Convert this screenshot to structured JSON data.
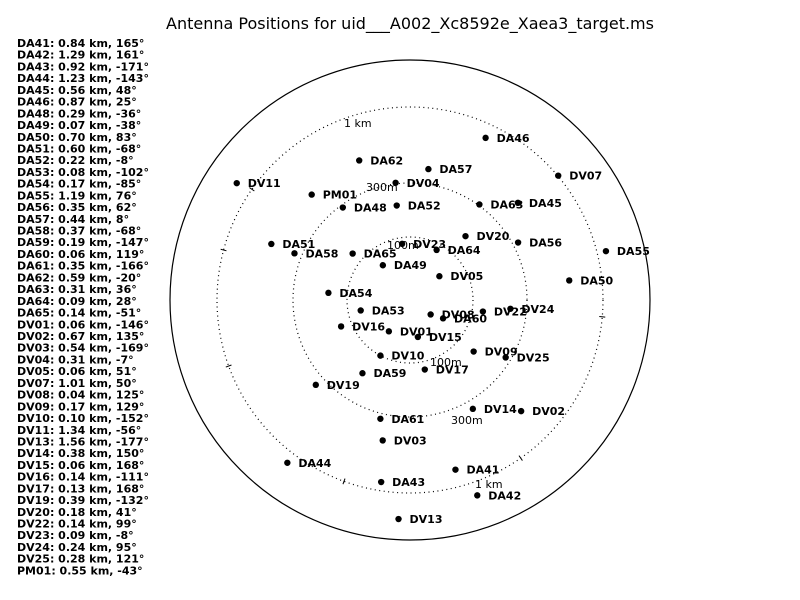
{
  "title": "Antenna Positions for uid___A002_Xc8592e_Xaea3_target.ms",
  "colors": {
    "background": "#ffffff",
    "ink": "#000000"
  },
  "ring_labels": [
    "100m",
    "300m",
    "1 km"
  ],
  "antenna_stats": [
    "DA41: 0.84 km, 165°",
    "DA42: 1.29 km, 161°",
    "DA43: 0.92 km, -171°",
    "DA44: 1.23 km, -143°",
    "DA45: 0.56 km, 48°",
    "DA46: 0.87 km, 25°",
    "DA48: 0.29 km, -36°",
    "DA49: 0.07 km, -38°",
    "DA50: 0.70 km, 83°",
    "DA51: 0.60 km, -68°",
    "DA52: 0.22 km, -8°",
    "DA53: 0.08 km, -102°",
    "DA54: 0.17 km, -85°",
    "DA55: 1.19 km, 76°",
    "DA56: 0.35 km, 62°",
    "DA57: 0.44 km, 8°",
    "DA58: 0.37 km, -68°",
    "DA59: 0.19 km, -147°",
    "DA60: 0.06 km, 119°",
    "DA61: 0.35 km, -166°",
    "DA62: 0.59 km, -20°",
    "DA63: 0.31 km, 36°",
    "DA64: 0.09 km, 28°",
    "DA65: 0.14 km, -51°",
    "DV01: 0.06 km, -146°",
    "DV02: 0.67 km, 135°",
    "DV03: 0.54 km, -169°",
    "DV04: 0.31 km, -7°",
    "DV05: 0.06 km, 51°",
    "DV07: 1.01 km, 50°",
    "DV08: 0.04 km, 125°",
    "DV09: 0.17 km, 129°",
    "DV10: 0.10 km, -152°",
    "DV11: 1.34 km, -56°",
    "DV13: 1.56 km, -177°",
    "DV14: 0.38 km, 150°",
    "DV15: 0.06 km, 168°",
    "DV16: 0.14 km, -111°",
    "DV17: 0.13 km, 168°",
    "DV19: 0.39 km, -132°",
    "DV20: 0.18 km, 41°",
    "DV22: 0.14 km, 99°",
    "DV23: 0.09 km, -8°",
    "DV24: 0.24 km, 95°",
    "DV25: 0.28 km, 121°",
    "PM01: 0.55 km, -43°"
  ],
  "antennas": [
    {
      "name": "DA41",
      "r_km": 0.84,
      "az_deg": 165
    },
    {
      "name": "DA42",
      "r_km": 1.29,
      "az_deg": 161
    },
    {
      "name": "DA43",
      "r_km": 0.92,
      "az_deg": -171
    },
    {
      "name": "DA44",
      "r_km": 1.23,
      "az_deg": -143
    },
    {
      "name": "DA45",
      "r_km": 0.56,
      "az_deg": 48
    },
    {
      "name": "DA46",
      "r_km": 0.87,
      "az_deg": 25
    },
    {
      "name": "DA48",
      "r_km": 0.29,
      "az_deg": -36
    },
    {
      "name": "DA49",
      "r_km": 0.07,
      "az_deg": -38
    },
    {
      "name": "DA50",
      "r_km": 0.7,
      "az_deg": 83
    },
    {
      "name": "DA51",
      "r_km": 0.6,
      "az_deg": -68
    },
    {
      "name": "DA52",
      "r_km": 0.22,
      "az_deg": -8
    },
    {
      "name": "DA53",
      "r_km": 0.08,
      "az_deg": -102
    },
    {
      "name": "DA54",
      "r_km": 0.17,
      "az_deg": -85
    },
    {
      "name": "DA55",
      "r_km": 1.19,
      "az_deg": 76
    },
    {
      "name": "DA56",
      "r_km": 0.35,
      "az_deg": 62
    },
    {
      "name": "DA57",
      "r_km": 0.44,
      "az_deg": 8
    },
    {
      "name": "DA58",
      "r_km": 0.37,
      "az_deg": -68
    },
    {
      "name": "DA59",
      "r_km": 0.19,
      "az_deg": -147
    },
    {
      "name": "DA60",
      "r_km": 0.06,
      "az_deg": 119
    },
    {
      "name": "DA61",
      "r_km": 0.35,
      "az_deg": -166
    },
    {
      "name": "DA62",
      "r_km": 0.59,
      "az_deg": -20
    },
    {
      "name": "DA63",
      "r_km": 0.31,
      "az_deg": 36
    },
    {
      "name": "DA64",
      "r_km": 0.09,
      "az_deg": 28
    },
    {
      "name": "DA65",
      "r_km": 0.14,
      "az_deg": -51
    },
    {
      "name": "DV01",
      "r_km": 0.06,
      "az_deg": -146
    },
    {
      "name": "DV02",
      "r_km": 0.67,
      "az_deg": 135
    },
    {
      "name": "DV03",
      "r_km": 0.54,
      "az_deg": -169
    },
    {
      "name": "DV04",
      "r_km": 0.31,
      "az_deg": -7
    },
    {
      "name": "DV05",
      "r_km": 0.06,
      "az_deg": 51
    },
    {
      "name": "DV07",
      "r_km": 1.01,
      "az_deg": 50
    },
    {
      "name": "DV08",
      "r_km": 0.04,
      "az_deg": 125
    },
    {
      "name": "DV09",
      "r_km": 0.17,
      "az_deg": 129
    },
    {
      "name": "DV10",
      "r_km": 0.1,
      "az_deg": -152
    },
    {
      "name": "DV11",
      "r_km": 1.34,
      "az_deg": -56
    },
    {
      "name": "DV13",
      "r_km": 1.56,
      "az_deg": -177
    },
    {
      "name": "DV14",
      "r_km": 0.38,
      "az_deg": 150
    },
    {
      "name": "DV15",
      "r_km": 0.06,
      "az_deg": 168
    },
    {
      "name": "DV16",
      "r_km": 0.14,
      "az_deg": -111
    },
    {
      "name": "DV17",
      "r_km": 0.13,
      "az_deg": 168
    },
    {
      "name": "DV19",
      "r_km": 0.39,
      "az_deg": -132
    },
    {
      "name": "DV20",
      "r_km": 0.18,
      "az_deg": 41
    },
    {
      "name": "DV22",
      "r_km": 0.14,
      "az_deg": 99
    },
    {
      "name": "DV23",
      "r_km": 0.09,
      "az_deg": -8
    },
    {
      "name": "DV24",
      "r_km": 0.24,
      "az_deg": 95
    },
    {
      "name": "DV25",
      "r_km": 0.28,
      "az_deg": 121
    },
    {
      "name": "PM01",
      "r_km": 0.55,
      "az_deg": -43
    }
  ]
}
